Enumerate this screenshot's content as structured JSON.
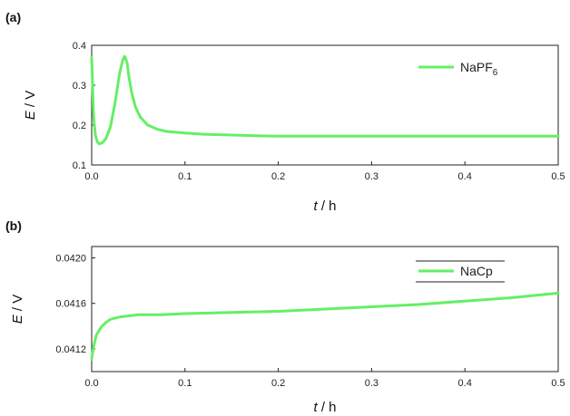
{
  "colors": {
    "series": "#66ee66",
    "axis": "#222222"
  },
  "chart_data": [
    {
      "panel_label": "(a)",
      "type": "line",
      "xlabel": {
        "var": "t",
        "unit": " / h"
      },
      "ylabel": {
        "var": "E",
        "unit": " / V"
      },
      "xlim": [
        0,
        0.5
      ],
      "ylim": [
        0.1,
        0.4
      ],
      "xticks": [
        "0.0",
        "0.1",
        "0.2",
        "0.3",
        "0.4",
        "0.5"
      ],
      "yticks": [
        "0.1",
        "0.2",
        "0.3",
        "0.4"
      ],
      "legend": {
        "position": "top-right",
        "base": "NaPF",
        "sub": "6"
      },
      "grid": false,
      "series": [
        {
          "name": "NaPF6",
          "x": [
            0,
            0.001,
            0.002,
            0.004,
            0.006,
            0.008,
            0.011,
            0.015,
            0.02,
            0.025,
            0.03,
            0.033,
            0.035,
            0.036,
            0.038,
            0.04,
            0.043,
            0.047,
            0.052,
            0.06,
            0.07,
            0.08,
            0.1,
            0.12,
            0.15,
            0.18,
            0.2,
            0.25,
            0.3,
            0.35,
            0.4,
            0.45,
            0.5
          ],
          "y": [
            0.37,
            0.3,
            0.22,
            0.175,
            0.158,
            0.153,
            0.155,
            0.165,
            0.195,
            0.255,
            0.33,
            0.36,
            0.372,
            0.37,
            0.355,
            0.32,
            0.28,
            0.245,
            0.22,
            0.2,
            0.19,
            0.184,
            0.18,
            0.177,
            0.175,
            0.173,
            0.172,
            0.172,
            0.172,
            0.172,
            0.172,
            0.172,
            0.172
          ]
        }
      ]
    },
    {
      "panel_label": "(b)",
      "type": "line",
      "xlabel": {
        "var": "t",
        "unit": " / h"
      },
      "ylabel": {
        "var": "E",
        "unit": " / V"
      },
      "xlim": [
        0,
        0.5
      ],
      "ylim": [
        0.041,
        0.0421
      ],
      "xticks": [
        "0.0",
        "0.1",
        "0.2",
        "0.3",
        "0.4",
        "0.5"
      ],
      "yticks": [
        "0.0412",
        "0.0416",
        "0.0420"
      ],
      "legend": {
        "position": "top-right",
        "base": "NaCp",
        "sub": ""
      },
      "grid": false,
      "series": [
        {
          "name": "NaCp",
          "x": [
            0,
            0.002,
            0.005,
            0.01,
            0.015,
            0.02,
            0.03,
            0.04,
            0.05,
            0.075,
            0.1,
            0.15,
            0.2,
            0.25,
            0.3,
            0.35,
            0.4,
            0.45,
            0.5
          ],
          "y": [
            0.04111,
            0.04122,
            0.04132,
            0.04139,
            0.04143,
            0.04146,
            0.04148,
            0.04149,
            0.0415,
            0.0415,
            0.04151,
            0.04152,
            0.04153,
            0.04155,
            0.04157,
            0.04159,
            0.04162,
            0.04165,
            0.04169
          ]
        }
      ]
    }
  ]
}
